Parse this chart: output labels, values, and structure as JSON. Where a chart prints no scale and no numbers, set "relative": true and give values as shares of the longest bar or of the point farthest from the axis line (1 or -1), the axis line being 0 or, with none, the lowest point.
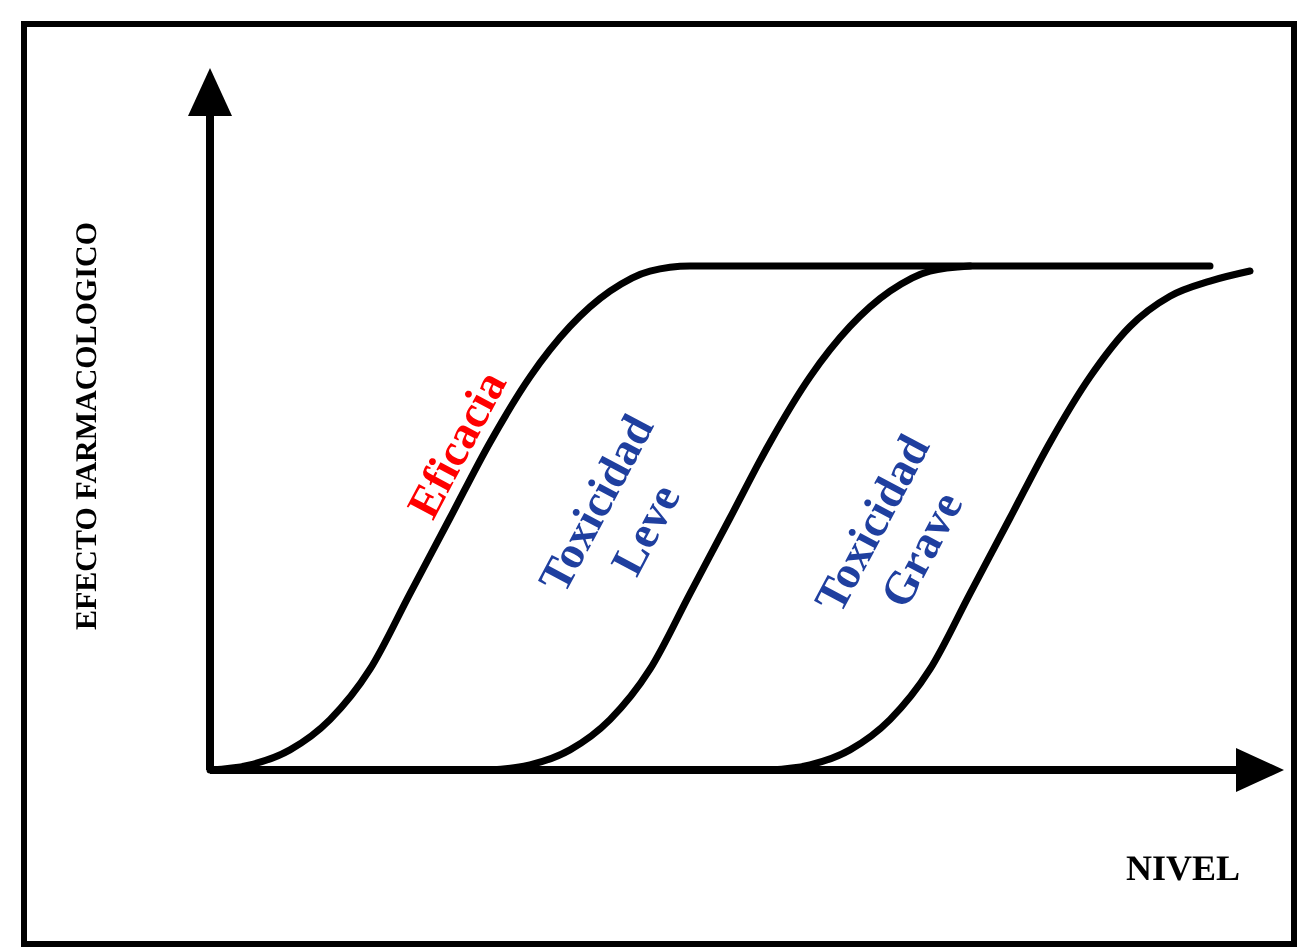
{
  "chart_data": {
    "type": "line",
    "relative": true,
    "xlabel": "NIVEL",
    "ylabel": "EFECTO FARMACOLOGICO",
    "categories": [
      null,
      null,
      null,
      null,
      null,
      null,
      null,
      null,
      null,
      null,
      null,
      null,
      null,
      null,
      null,
      null,
      null,
      null,
      null,
      null,
      null,
      null,
      null,
      null,
      null,
      null,
      null
    ],
    "series": [
      {
        "color": "#000000",
        "values": [
          0,
          0.01,
          0.04,
          0.1,
          0.2,
          0.35,
          0.5,
          0.65,
          0.78,
          0.88,
          0.95,
          0.99,
          1,
          1,
          1,
          1,
          1,
          1,
          1,
          1,
          1,
          1,
          1,
          1,
          1,
          1,
          null
        ]
      },
      {
        "color": "#000000",
        "values": [
          null,
          null,
          null,
          null,
          null,
          null,
          null,
          0,
          0.01,
          0.04,
          0.1,
          0.2,
          0.35,
          0.5,
          0.65,
          0.78,
          0.88,
          0.95,
          0.99,
          1,
          null,
          null,
          null,
          null,
          null,
          null,
          null
        ]
      },
      {
        "color": "#000000",
        "values": [
          null,
          null,
          null,
          null,
          null,
          null,
          null,
          null,
          null,
          null,
          null,
          null,
          null,
          null,
          0,
          0.01,
          0.04,
          0.1,
          0.2,
          0.35,
          0.5,
          0.65,
          0.78,
          0.88,
          0.94,
          0.97,
          0.99
        ]
      }
    ],
    "annotations": [
      "Eficacia",
      "Toxicidad Leve",
      "Toxicidad Grave"
    ],
    "line_style": "solid"
  }
}
